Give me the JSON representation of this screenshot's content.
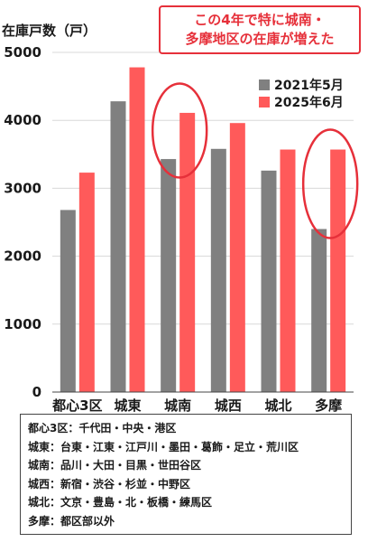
{
  "chart_data": {
    "type": "bar",
    "ylabel": "在庫戸数（戸）",
    "categories": [
      "都心3区",
      "城東",
      "城南",
      "城西",
      "城北",
      "多摩"
    ],
    "series": [
      {
        "name": "2021年5月",
        "color": "#808080",
        "values": [
          2680,
          4280,
          3430,
          3580,
          3260,
          2400
        ]
      },
      {
        "name": "2025年6月",
        "color": "#ff5a5a",
        "values": [
          3230,
          4780,
          4110,
          3960,
          3570,
          3570
        ]
      }
    ],
    "ylim": [
      0,
      5000
    ],
    "yticks": [
      0,
      1000,
      2000,
      3000,
      4000,
      5000
    ],
    "grid": true,
    "legend_position": "top-right",
    "highlight_color": "#e6303a",
    "highlighted_categories": [
      "城南",
      "多摩"
    ],
    "callout": [
      "この4年で特に城南・",
      "多摩地区の在庫が増えた"
    ]
  },
  "notes": [
    "都心3区：千代田・中央・港区",
    "城東：台東・江東・江戸川・墨田・葛飾・足立・荒川区",
    "城南：品川・大田・目黒・世田谷区",
    "城西：新宿・渋谷・杉並・中野区",
    "城北：文京・豊島・北・板橋・練馬区",
    "多摩：都区部以外"
  ]
}
